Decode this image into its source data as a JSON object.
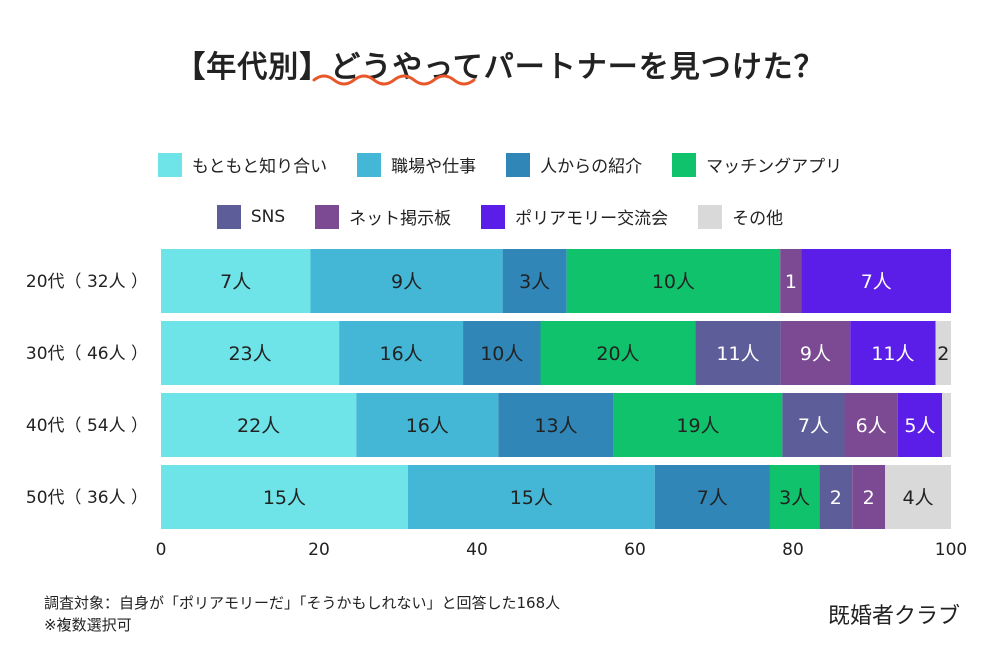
{
  "title": "【年代別】どうやってパートナーを見つけた？",
  "footnote_line1": "調査対象：自身が「ポリアモリーだ」「そうかもしれない」と回答した168人",
  "footnote_line2": "※複数選択可",
  "brand": "既婚者クラブ",
  "accent_color": "#e8562a",
  "chart_data": {
    "type": "bar",
    "orientation": "horizontal",
    "stacked": true,
    "categories": [
      "20代（32人）",
      "30代（46人）",
      "40代（54人）",
      "50代（36人）"
    ],
    "category_labels": [
      "20代（ 32人 ）",
      "30代（ 46人 ）",
      "40代（ 54人 ）",
      "50代（ 36人 ）"
    ],
    "xlim": [
      0,
      100
    ],
    "xticks": [
      0,
      20,
      40,
      60,
      80,
      100
    ],
    "legend_position": "top",
    "series": [
      {
        "name": "もともと知り合い",
        "color": "#6ee3e8",
        "counts": [
          7,
          23,
          22,
          15
        ],
        "labels": [
          "7人",
          "23人",
          "22人",
          "15人"
        ]
      },
      {
        "name": "職場や仕事",
        "color": "#45b7d6",
        "counts": [
          9,
          16,
          16,
          15
        ],
        "labels": [
          "9人",
          "16人",
          "16人",
          "15人"
        ]
      },
      {
        "name": "人からの紹介",
        "color": "#2f86b7",
        "counts": [
          3,
          10,
          13,
          7
        ],
        "labels": [
          "3人",
          "10人",
          "13人",
          "7人"
        ]
      },
      {
        "name": "マッチングアプリ",
        "color": "#0fc26b",
        "counts": [
          10,
          20,
          19,
          3
        ],
        "labels": [
          "10人",
          "20人",
          "19人",
          "3人"
        ]
      },
      {
        "name": "SNS",
        "color": "#5d5e99",
        "counts": [
          0,
          11,
          7,
          2
        ],
        "labels": [
          "",
          "11人",
          "7人",
          "2"
        ]
      },
      {
        "name": "ネット掲示板",
        "color": "#7b4a93",
        "counts": [
          1,
          9,
          6,
          2
        ],
        "labels": [
          "1",
          "9人",
          "6人",
          "2"
        ]
      },
      {
        "name": "ポリアモリー交流会",
        "color": "#5b1ee8",
        "counts": [
          7,
          11,
          5,
          0
        ],
        "labels": [
          "7人",
          "11人",
          "5人",
          ""
        ]
      },
      {
        "name": "その他",
        "color": "#d9d9d9",
        "counts": [
          0,
          2,
          1,
          4
        ],
        "labels": [
          "",
          "2",
          "",
          "4人"
        ]
      }
    ]
  }
}
